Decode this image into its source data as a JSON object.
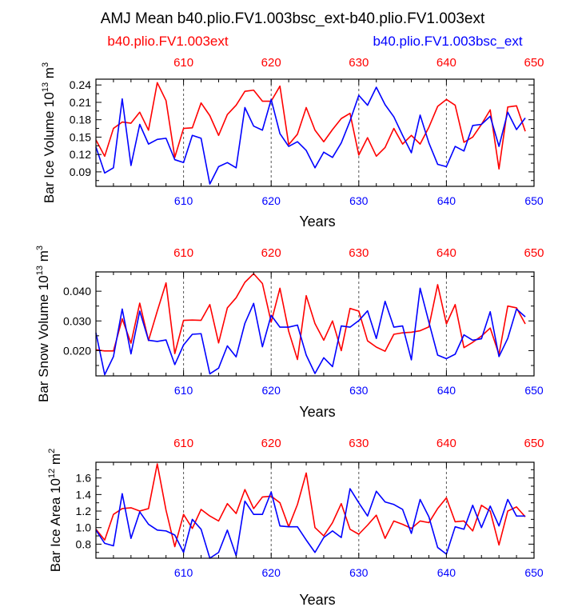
{
  "header": {
    "title": "AMJ Mean b40.plio.FV1.003bsc_ext-b40.plio.FV1.003ext",
    "legend_left": "b40.plio.FV1.003ext",
    "legend_right": "b40.plio.FV1.003bsc_ext"
  },
  "colors": {
    "series_red": "#ff0000",
    "series_blue": "#0000ff",
    "axis": "#000000",
    "gridline": "#555555"
  },
  "chart_data": [
    {
      "type": "line",
      "id": "ice-volume",
      "ylabel": "Bar Ice Volume 10",
      "ylabel_exp": "13",
      "ylabel_unit": "m",
      "ylabel_unit_exp": "3",
      "xlabel": "Years",
      "xlim": [
        600,
        650
      ],
      "ylim": [
        0.065,
        0.25
      ],
      "y_ticks": [
        0.09,
        0.12,
        0.15,
        0.18,
        0.21,
        0.24
      ],
      "y_tick_labels": [
        "0.09",
        "0.12",
        "0.15",
        "0.18",
        "0.21",
        "0.24"
      ],
      "y_minor_ticks": [
        0.075,
        0.105,
        0.135,
        0.165,
        0.195,
        0.225
      ],
      "x_ticks": [
        610,
        620,
        630,
        640,
        650
      ],
      "x_tick_labels": [
        "610",
        "620",
        "630",
        "640",
        "650"
      ],
      "vlines": [
        610,
        620,
        630,
        640
      ],
      "series": [
        {
          "name": "b40.plio.FV1.003ext",
          "color": "red",
          "values": [
            0.145,
            0.117,
            0.165,
            0.176,
            0.174,
            0.193,
            0.162,
            0.244,
            0.213,
            0.115,
            0.165,
            0.166,
            0.209,
            0.187,
            0.153,
            0.189,
            0.205,
            0.229,
            0.231,
            0.212,
            0.212,
            0.238,
            0.137,
            0.155,
            0.201,
            0.162,
            0.142,
            0.163,
            0.182,
            0.191,
            0.119,
            0.149,
            0.117,
            0.132,
            0.165,
            0.138,
            0.153,
            0.138,
            0.167,
            0.203,
            0.215,
            0.205,
            0.141,
            0.15,
            0.172,
            0.197,
            0.095,
            0.202,
            0.204,
            0.16
          ]
        },
        {
          "name": "b40.plio.FV1.003bsc_ext",
          "color": "blue",
          "values": [
            0.133,
            0.088,
            0.097,
            0.216,
            0.101,
            0.172,
            0.138,
            0.146,
            0.148,
            0.111,
            0.106,
            0.153,
            0.148,
            0.069,
            0.099,
            0.106,
            0.097,
            0.201,
            0.169,
            0.162,
            0.215,
            0.156,
            0.134,
            0.142,
            0.127,
            0.097,
            0.124,
            0.115,
            0.14,
            0.178,
            0.222,
            0.205,
            0.236,
            0.206,
            0.185,
            0.153,
            0.123,
            0.188,
            0.14,
            0.103,
            0.099,
            0.134,
            0.126,
            0.17,
            0.172,
            0.186,
            0.134,
            0.193,
            0.163,
            0.183
          ]
        }
      ]
    },
    {
      "type": "line",
      "id": "snow-volume",
      "ylabel": "Bar Snow Volume 10",
      "ylabel_exp": "13",
      "ylabel_unit": "m",
      "ylabel_unit_exp": "3",
      "xlabel": "Years",
      "xlim": [
        600,
        650
      ],
      "ylim": [
        0.0115,
        0.0465
      ],
      "y_ticks": [
        0.02,
        0.03,
        0.04
      ],
      "y_tick_labels": [
        "0.020",
        "0.030",
        "0.040"
      ],
      "y_minor_ticks": [
        0.015,
        0.025,
        0.035,
        0.045
      ],
      "x_ticks": [
        610,
        620,
        630,
        640,
        650
      ],
      "x_tick_labels": [
        "610",
        "620",
        "630",
        "640",
        "650"
      ],
      "vlines": [
        610,
        620,
        630,
        640
      ],
      "series": [
        {
          "name": "b40.plio.FV1.003ext",
          "color": "red",
          "values": [
            0.0203,
            0.0199,
            0.0199,
            0.0307,
            0.0225,
            0.036,
            0.0234,
            0.0333,
            0.0428,
            0.019,
            0.0302,
            0.0303,
            0.0302,
            0.0355,
            0.0226,
            0.0344,
            0.0378,
            0.043,
            0.0459,
            0.0426,
            0.0296,
            0.041,
            0.0265,
            0.017,
            0.0385,
            0.0291,
            0.0235,
            0.03,
            0.02,
            0.0342,
            0.0333,
            0.0233,
            0.0212,
            0.0198,
            0.0255,
            0.026,
            0.0262,
            0.0267,
            0.028,
            0.0422,
            0.029,
            0.0355,
            0.021,
            0.0228,
            0.0249,
            0.0276,
            0.0187,
            0.035,
            0.0344,
            0.029
          ]
        },
        {
          "name": "b40.plio.FV1.003bsc_ext",
          "color": "blue",
          "values": [
            0.026,
            0.0119,
            0.018,
            0.034,
            0.0189,
            0.0333,
            0.0235,
            0.0231,
            0.0236,
            0.0153,
            0.0219,
            0.0255,
            0.0257,
            0.0122,
            0.0141,
            0.0216,
            0.0179,
            0.0292,
            0.0359,
            0.0213,
            0.0319,
            0.0279,
            0.0279,
            0.0286,
            0.0185,
            0.0123,
            0.0176,
            0.0146,
            0.0283,
            0.0279,
            0.0301,
            0.0334,
            0.0241,
            0.0366,
            0.0279,
            0.0283,
            0.0169,
            0.041,
            0.0296,
            0.0185,
            0.0173,
            0.0188,
            0.0253,
            0.0235,
            0.024,
            0.0331,
            0.018,
            0.0241,
            0.034,
            0.0314
          ]
        }
      ]
    },
    {
      "type": "line",
      "id": "ice-area",
      "ylabel": "Bar Ice Area 10",
      "ylabel_exp": "12",
      "ylabel_unit": "m",
      "ylabel_unit_exp": "2",
      "xlabel": "Years",
      "xlim": [
        600,
        650
      ],
      "ylim": [
        0.63,
        1.79
      ],
      "y_ticks": [
        0.8,
        1.0,
        1.2,
        1.4,
        1.6
      ],
      "y_tick_labels": [
        "0.8",
        "1.0",
        "1.2",
        "1.4",
        "1.6"
      ],
      "y_minor_ticks": [
        0.7,
        0.9,
        1.1,
        1.3,
        1.5,
        1.7
      ],
      "x_ticks": [
        610,
        620,
        630,
        640,
        650
      ],
      "x_tick_labels": [
        "610",
        "620",
        "630",
        "640",
        "650"
      ],
      "vlines": [
        610,
        620,
        630,
        640
      ],
      "series": [
        {
          "name": "b40.plio.FV1.003ext",
          "color": "red",
          "values": [
            0.98,
            0.85,
            1.16,
            1.23,
            1.24,
            1.2,
            1.23,
            1.77,
            1.21,
            0.77,
            1.16,
            0.99,
            1.22,
            1.14,
            1.08,
            1.29,
            1.17,
            1.46,
            1.23,
            1.37,
            1.38,
            1.3,
            1.01,
            1.28,
            1.66,
            1.0,
            0.9,
            1.06,
            1.29,
            0.98,
            0.92,
            1.03,
            1.15,
            0.87,
            1.08,
            1.04,
            0.99,
            1.08,
            1.06,
            1.23,
            1.36,
            1.07,
            1.08,
            0.96,
            1.27,
            1.2,
            0.79,
            1.2,
            1.25,
            1.13
          ]
        },
        {
          "name": "b40.plio.FV1.003bsc_ext",
          "color": "blue",
          "values": [
            0.97,
            0.81,
            0.78,
            1.41,
            0.87,
            1.19,
            1.04,
            0.97,
            0.96,
            0.91,
            0.7,
            1.1,
            0.98,
            0.63,
            0.7,
            0.97,
            0.66,
            1.32,
            1.16,
            1.16,
            1.43,
            1.02,
            1.01,
            1.01,
            0.85,
            0.7,
            0.88,
            0.96,
            0.88,
            1.47,
            1.3,
            1.14,
            1.44,
            1.31,
            1.28,
            1.22,
            0.93,
            1.34,
            1.13,
            0.76,
            0.68,
            1.01,
            0.98,
            1.27,
            1.0,
            1.26,
            1.02,
            1.34,
            1.14,
            1.14
          ]
        }
      ]
    }
  ]
}
